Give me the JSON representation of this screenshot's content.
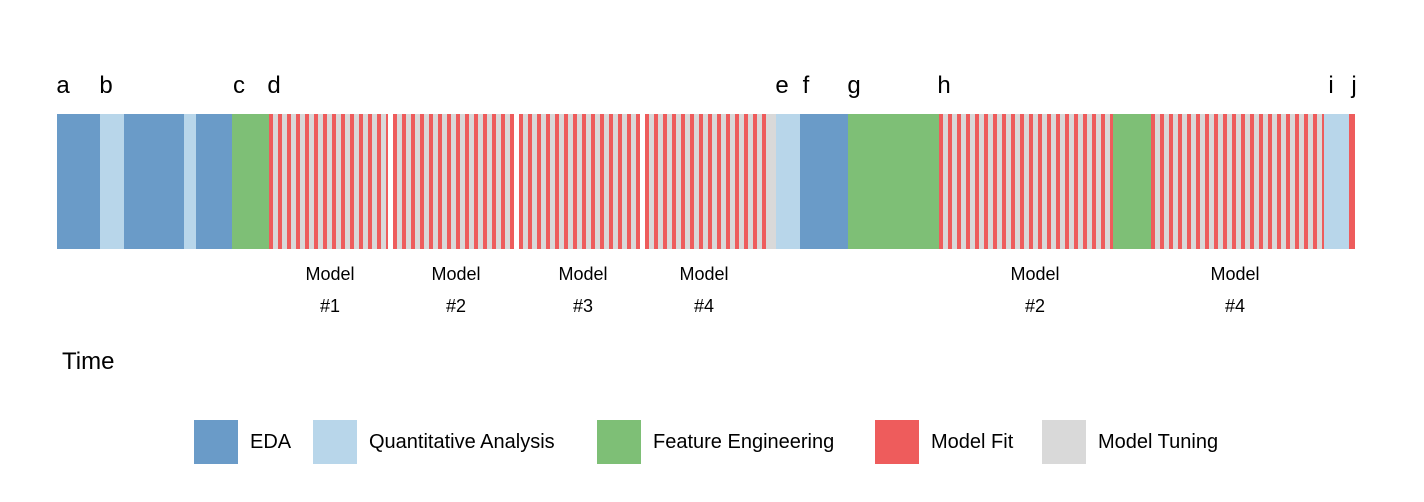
{
  "colors": {
    "eda": "#6a9bc8",
    "quantitative": "#b8d6ea",
    "feature": "#7ebf76",
    "fit": "#ee5c5c",
    "tuning": "#d9d9d9"
  },
  "phase_letters": [
    "a",
    "b",
    "c",
    "d",
    "e",
    "f",
    "g",
    "h",
    "i",
    "j"
  ],
  "model_labels": [
    {
      "line1": "Model",
      "line2": "#1"
    },
    {
      "line1": "Model",
      "line2": "#2"
    },
    {
      "line1": "Model",
      "line2": "#3"
    },
    {
      "line1": "Model",
      "line2": "#4"
    },
    {
      "line1": "Model",
      "line2": "#2"
    },
    {
      "line1": "Model",
      "line2": "#4"
    }
  ],
  "time_label": "Time",
  "legend": [
    {
      "label": "EDA",
      "color_key": "eda"
    },
    {
      "label": "Quantitative Analysis",
      "color_key": "quantitative"
    },
    {
      "label": "Feature Engineering",
      "color_key": "feature"
    },
    {
      "label": "Model Fit",
      "color_key": "fit"
    },
    {
      "label": "Model Tuning",
      "color_key": "tuning"
    }
  ]
}
